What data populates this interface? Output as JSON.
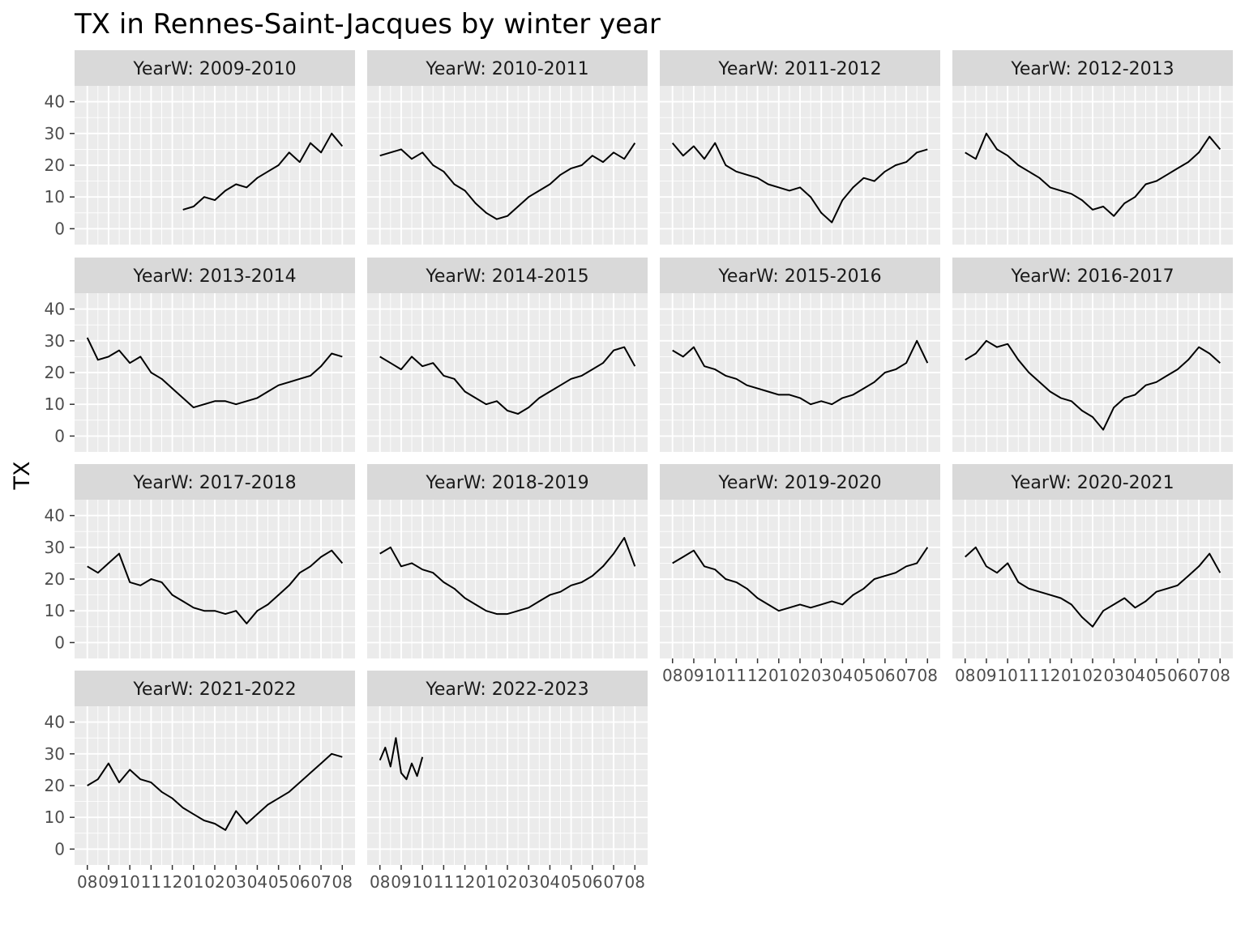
{
  "chart_data": {
    "type": "line",
    "title": "TX in Rennes-Saint-Jacques by winter year",
    "ylabel": "TX",
    "xlabel": "",
    "strip_prefix": "YearW: ",
    "ylim": [
      -5,
      45
    ],
    "y_ticks": [
      0,
      10,
      20,
      30,
      40
    ],
    "x_tick_labels": [
      "08",
      "09",
      "10",
      "11",
      "12",
      "01",
      "02",
      "03",
      "04",
      "05",
      "06",
      "07",
      "08"
    ],
    "grid": true,
    "colors": {
      "panel": "#ebebeb",
      "strip": "#d9d9d9",
      "grid": "#ffffff",
      "line": "#000000"
    },
    "series": [
      {
        "name": "2009-2010",
        "months": [
          4.5,
          5,
          5.5,
          6,
          6.5,
          7,
          7.5,
          8,
          8.5,
          9,
          9.5,
          10,
          10.5,
          11,
          11.5,
          12
        ],
        "values": [
          6,
          7,
          10,
          9,
          12,
          14,
          13,
          16,
          18,
          20,
          24,
          21,
          27,
          24,
          30,
          26
        ]
      },
      {
        "name": "2010-2011",
        "months": [
          0,
          0.5,
          1,
          1.5,
          2,
          2.5,
          3,
          3.5,
          4,
          4.5,
          5,
          5.5,
          6,
          6.5,
          7,
          7.5,
          8,
          8.5,
          9,
          9.5,
          10,
          10.5,
          11,
          11.5,
          12
        ],
        "values": [
          23,
          24,
          25,
          22,
          24,
          20,
          18,
          14,
          12,
          8,
          5,
          3,
          4,
          7,
          10,
          12,
          14,
          17,
          19,
          20,
          23,
          21,
          24,
          22,
          27
        ]
      },
      {
        "name": "2011-2012",
        "months": [
          0,
          0.5,
          1,
          1.5,
          2,
          2.5,
          3,
          3.5,
          4,
          4.5,
          5,
          5.5,
          6,
          6.5,
          7,
          7.5,
          8,
          8.5,
          9,
          9.5,
          10,
          10.5,
          11,
          11.5,
          12
        ],
        "values": [
          27,
          23,
          26,
          22,
          27,
          20,
          18,
          17,
          16,
          14,
          13,
          12,
          13,
          10,
          5,
          2,
          9,
          13,
          16,
          15,
          18,
          20,
          21,
          24,
          25
        ]
      },
      {
        "name": "2012-2013",
        "months": [
          0,
          0.5,
          1,
          1.5,
          2,
          2.5,
          3,
          3.5,
          4,
          4.5,
          5,
          5.5,
          6,
          6.5,
          7,
          7.5,
          8,
          8.5,
          9,
          9.5,
          10,
          10.5,
          11,
          11.5,
          12
        ],
        "values": [
          24,
          22,
          30,
          25,
          23,
          20,
          18,
          16,
          13,
          12,
          11,
          9,
          6,
          7,
          4,
          8,
          10,
          14,
          15,
          17,
          19,
          21,
          24,
          29,
          25
        ]
      },
      {
        "name": "2013-2014",
        "months": [
          0,
          0.5,
          1,
          1.5,
          2,
          2.5,
          3,
          3.5,
          4,
          4.5,
          5,
          5.5,
          6,
          6.5,
          7,
          7.5,
          8,
          8.5,
          9,
          9.5,
          10,
          10.5,
          11,
          11.5,
          12
        ],
        "values": [
          31,
          24,
          25,
          27,
          23,
          25,
          20,
          18,
          15,
          12,
          9,
          10,
          11,
          11,
          10,
          11,
          12,
          14,
          16,
          17,
          18,
          19,
          22,
          26,
          25
        ]
      },
      {
        "name": "2014-2015",
        "months": [
          0,
          0.5,
          1,
          1.5,
          2,
          2.5,
          3,
          3.5,
          4,
          4.5,
          5,
          5.5,
          6,
          6.5,
          7,
          7.5,
          8,
          8.5,
          9,
          9.5,
          10,
          10.5,
          11,
          11.5,
          12
        ],
        "values": [
          25,
          23,
          21,
          25,
          22,
          23,
          19,
          18,
          14,
          12,
          10,
          11,
          8,
          7,
          9,
          12,
          14,
          16,
          18,
          19,
          21,
          23,
          27,
          28,
          22
        ]
      },
      {
        "name": "2015-2016",
        "months": [
          0,
          0.5,
          1,
          1.5,
          2,
          2.5,
          3,
          3.5,
          4,
          4.5,
          5,
          5.5,
          6,
          6.5,
          7,
          7.5,
          8,
          8.5,
          9,
          9.5,
          10,
          10.5,
          11,
          11.5,
          12
        ],
        "values": [
          27,
          25,
          28,
          22,
          21,
          19,
          18,
          16,
          15,
          14,
          13,
          13,
          12,
          10,
          11,
          10,
          12,
          13,
          15,
          17,
          20,
          21,
          23,
          30,
          23
        ]
      },
      {
        "name": "2016-2017",
        "months": [
          0,
          0.5,
          1,
          1.5,
          2,
          2.5,
          3,
          3.5,
          4,
          4.5,
          5,
          5.5,
          6,
          6.5,
          7,
          7.5,
          8,
          8.5,
          9,
          9.5,
          10,
          10.5,
          11,
          11.5,
          12
        ],
        "values": [
          24,
          26,
          30,
          28,
          29,
          24,
          20,
          17,
          14,
          12,
          11,
          8,
          6,
          2,
          9,
          12,
          13,
          16,
          17,
          19,
          21,
          24,
          28,
          26,
          23
        ]
      },
      {
        "name": "2017-2018",
        "months": [
          0,
          0.5,
          1,
          1.5,
          2,
          2.5,
          3,
          3.5,
          4,
          4.5,
          5,
          5.5,
          6,
          6.5,
          7,
          7.5,
          8,
          8.5,
          9,
          9.5,
          10,
          10.5,
          11,
          11.5,
          12
        ],
        "values": [
          24,
          22,
          25,
          28,
          19,
          18,
          20,
          19,
          15,
          13,
          11,
          10,
          10,
          9,
          10,
          6,
          10,
          12,
          15,
          18,
          22,
          24,
          27,
          29,
          25
        ]
      },
      {
        "name": "2018-2019",
        "months": [
          0,
          0.5,
          1,
          1.5,
          2,
          2.5,
          3,
          3.5,
          4,
          4.5,
          5,
          5.5,
          6,
          6.5,
          7,
          7.5,
          8,
          8.5,
          9,
          9.5,
          10,
          10.5,
          11,
          11.5,
          12
        ],
        "values": [
          28,
          30,
          24,
          25,
          23,
          22,
          19,
          17,
          14,
          12,
          10,
          9,
          9,
          10,
          11,
          13,
          15,
          16,
          18,
          19,
          21,
          24,
          28,
          33,
          24
        ]
      },
      {
        "name": "2019-2020",
        "months": [
          0,
          0.5,
          1,
          1.5,
          2,
          2.5,
          3,
          3.5,
          4,
          4.5,
          5,
          5.5,
          6,
          6.5,
          7,
          7.5,
          8,
          8.5,
          9,
          9.5,
          10,
          10.5,
          11,
          11.5,
          12
        ],
        "values": [
          25,
          27,
          29,
          24,
          23,
          20,
          19,
          17,
          14,
          12,
          10,
          11,
          12,
          11,
          12,
          13,
          12,
          15,
          17,
          20,
          21,
          22,
          24,
          25,
          30
        ]
      },
      {
        "name": "2020-2021",
        "months": [
          0,
          0.5,
          1,
          1.5,
          2,
          2.5,
          3,
          3.5,
          4,
          4.5,
          5,
          5.5,
          6,
          6.5,
          7,
          7.5,
          8,
          8.5,
          9,
          9.5,
          10,
          10.5,
          11,
          11.5,
          12
        ],
        "values": [
          27,
          30,
          24,
          22,
          25,
          19,
          17,
          16,
          15,
          14,
          12,
          8,
          5,
          10,
          12,
          14,
          11,
          13,
          16,
          17,
          18,
          21,
          24,
          28,
          22
        ]
      },
      {
        "name": "2021-2022",
        "months": [
          0,
          0.5,
          1,
          1.5,
          2,
          2.5,
          3,
          3.5,
          4,
          4.5,
          5,
          5.5,
          6,
          6.5,
          7,
          7.5,
          8,
          8.5,
          9,
          9.5,
          10,
          10.5,
          11,
          11.5,
          12
        ],
        "values": [
          20,
          22,
          27,
          21,
          25,
          22,
          21,
          18,
          16,
          13,
          11,
          9,
          8,
          6,
          12,
          8,
          11,
          14,
          16,
          18,
          21,
          24,
          27,
          30,
          29
        ]
      },
      {
        "name": "2022-2023",
        "months": [
          0,
          0.25,
          0.5,
          0.75,
          1,
          1.25,
          1.5,
          1.75,
          2
        ],
        "values": [
          28,
          32,
          26,
          35,
          24,
          22,
          27,
          23,
          29
        ]
      }
    ]
  }
}
